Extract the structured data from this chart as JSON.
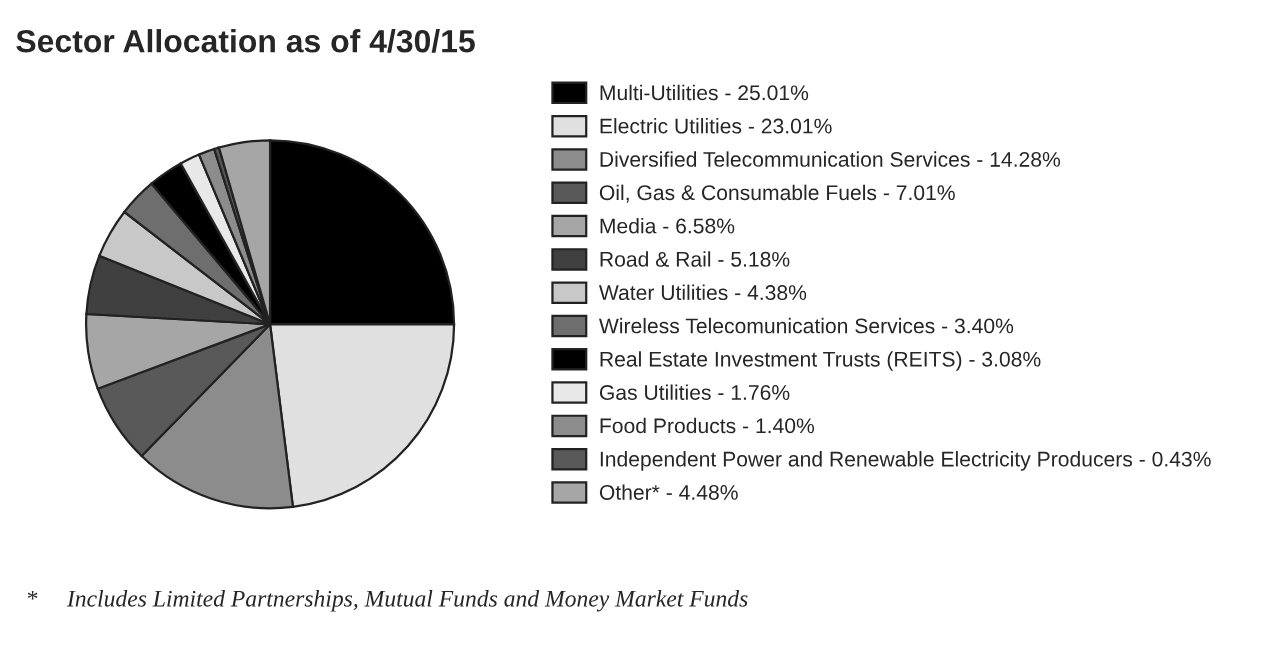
{
  "chart_data": {
    "type": "pie",
    "title": "Sector Allocation as of 4/30/15",
    "categories": [
      "Multi-Utilities - 25.01%",
      "Electric Utilities - 23.01%",
      "Diversified Telecommunication Services - 14.28%",
      "Oil, Gas & Consumable Fuels - 7.01%",
      "Media - 6.58%",
      "Road & Rail - 5.18%",
      "Water Utilities - 4.38%",
      "Wireless Telecomunication Services - 3.40%",
      "Real Estate Investment Trusts (REITS) - 3.08%",
      "Gas Utilities - 1.76%",
      "Food Products - 1.40%",
      "Independent Power and Renewable Electricity Producers - 0.43%",
      "Other* - 4.48%"
    ],
    "values": [
      25.01,
      23.01,
      14.28,
      7.01,
      6.58,
      5.18,
      4.38,
      3.4,
      3.08,
      1.76,
      1.4,
      0.43,
      4.48
    ],
    "colors": [
      "#000000",
      "#e0e0e0",
      "#8c8c8c",
      "#595959",
      "#a6a6a6",
      "#404040",
      "#c8c8c8",
      "#6e6e6e",
      "#000000",
      "#e8e8e8",
      "#8c8c8c",
      "#595959",
      "#a6a6a6"
    ],
    "legend": "right",
    "annotations": [
      "*     Includes Limited Partnerships, Mutual Funds and Money Market Funds"
    ]
  }
}
